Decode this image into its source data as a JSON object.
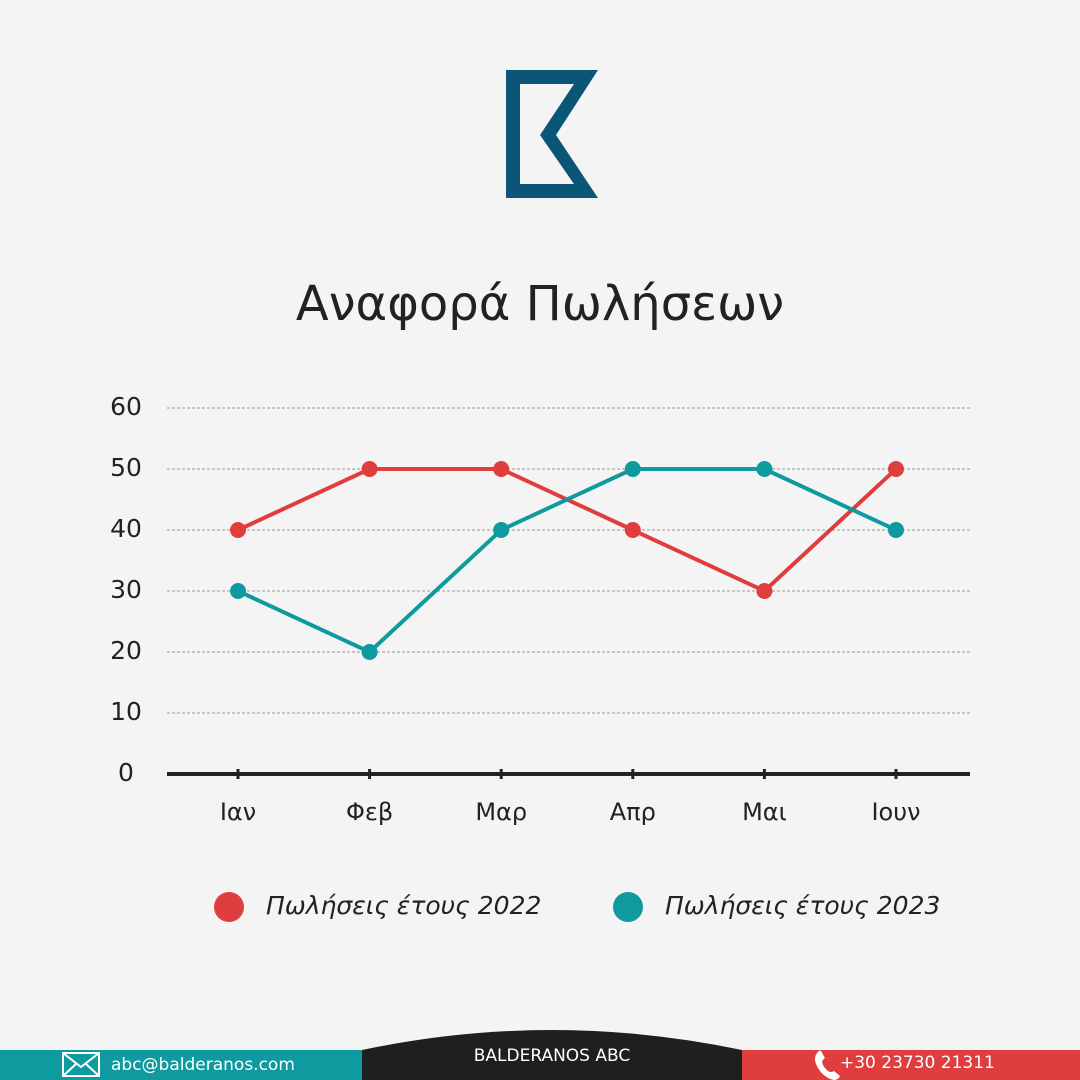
{
  "chart_data": {
    "type": "line",
    "title": "Αναφορά Πωλήσεων",
    "categories": [
      "Ιαν",
      "Φεβ",
      "Μαρ",
      "Απρ",
      "Μαι",
      "Ιουν"
    ],
    "series": [
      {
        "name": "Πωλήσεις έτους 2022",
        "color": "#e03e3e",
        "values": [
          40,
          50,
          50,
          40,
          30,
          50
        ]
      },
      {
        "name": "Πωλήσεις έτους 2023",
        "color": "#0e9a9e",
        "values": [
          30,
          20,
          40,
          50,
          50,
          40
        ]
      }
    ],
    "ylim": [
      0,
      60
    ],
    "yticks": [
      0,
      10,
      20,
      30,
      40,
      50,
      60
    ],
    "grid": true
  },
  "footer": {
    "email": "abc@balderanos.com",
    "company": "BALDERANOS ABC",
    "phone": "+30 23730 21311"
  }
}
